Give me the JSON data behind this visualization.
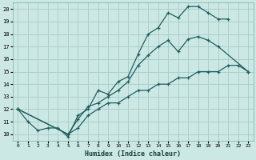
{
  "title": "",
  "xlabel": "Humidex (Indice chaleur)",
  "background_color": "#cce8e4",
  "grid_color": "#aacfca",
  "line_color": "#206060",
  "xlim": [
    -0.5,
    23.5
  ],
  "ylim": [
    9.5,
    20.5
  ],
  "xticks": [
    0,
    1,
    2,
    3,
    4,
    5,
    6,
    7,
    8,
    9,
    10,
    11,
    12,
    13,
    14,
    15,
    16,
    17,
    18,
    19,
    20,
    21,
    22,
    23
  ],
  "yticks": [
    10,
    11,
    12,
    13,
    14,
    15,
    16,
    17,
    18,
    19,
    20
  ],
  "series": [
    {
      "x": [
        0,
        1,
        2,
        3,
        4,
        5,
        6,
        7,
        8,
        9,
        10,
        11,
        12,
        13,
        14,
        15,
        16,
        17,
        18,
        19,
        20,
        21
      ],
      "y": [
        12,
        11,
        10.3,
        10.5,
        10.5,
        9.8,
        11.5,
        12.0,
        13.5,
        13.2,
        14.2,
        14.6,
        16.4,
        18.0,
        18.5,
        19.7,
        19.3,
        20.2,
        20.2,
        19.7,
        19.2,
        19.2
      ]
    },
    {
      "x": [
        0,
        5,
        6,
        7,
        8,
        9,
        10,
        11,
        12,
        13,
        14,
        15,
        16,
        17,
        18,
        19,
        20,
        23
      ],
      "y": [
        12,
        10.0,
        11.2,
        12.2,
        12.5,
        13.0,
        13.5,
        14.2,
        15.5,
        16.3,
        17.0,
        17.5,
        16.6,
        17.6,
        17.8,
        17.5,
        17.0,
        15.0
      ]
    },
    {
      "x": [
        0,
        5,
        6,
        7,
        8,
        9,
        10,
        11,
        12,
        13,
        14,
        15,
        16,
        17,
        18,
        19,
        20,
        21,
        22,
        23
      ],
      "y": [
        12,
        10.0,
        10.5,
        11.5,
        12.0,
        12.5,
        12.5,
        13.0,
        13.5,
        13.5,
        14.0,
        14.0,
        14.5,
        14.5,
        15.0,
        15.0,
        15.0,
        15.5,
        15.5,
        15.0
      ]
    }
  ]
}
